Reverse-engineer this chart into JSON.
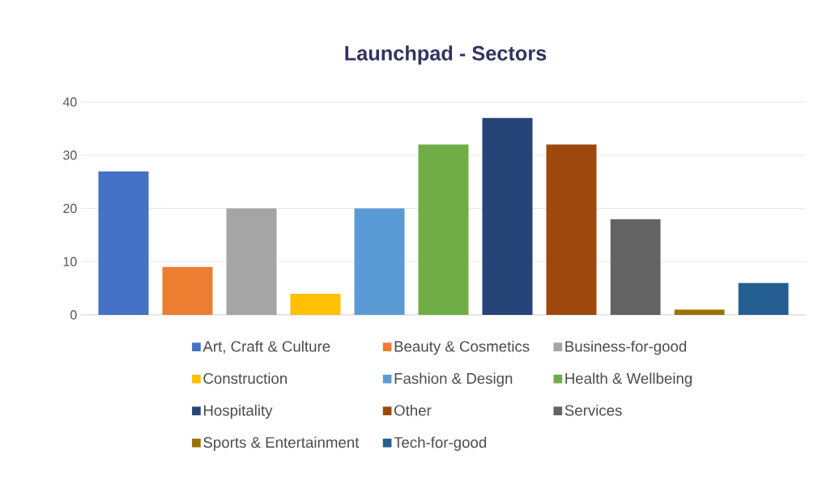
{
  "chart_data": {
    "type": "bar",
    "title": "Launchpad - Sectors",
    "categories": [
      null
    ],
    "series": [
      {
        "name": "Art, Craft & Culture",
        "color": "#4472c4",
        "values": [
          27
        ]
      },
      {
        "name": "Beauty & Cosmetics",
        "color": "#ed7d31",
        "values": [
          9
        ]
      },
      {
        "name": "Business-for-good",
        "color": "#a5a5a5",
        "values": [
          20
        ]
      },
      {
        "name": "Construction",
        "color": "#ffc000",
        "values": [
          4
        ]
      },
      {
        "name": "Fashion & Design",
        "color": "#5b9bd5",
        "values": [
          20
        ]
      },
      {
        "name": "Health & Wellbeing",
        "color": "#70ad47",
        "values": [
          32
        ]
      },
      {
        "name": "Hospitality",
        "color": "#264478",
        "values": [
          37
        ]
      },
      {
        "name": "Other",
        "color": "#9e480e",
        "values": [
          32
        ]
      },
      {
        "name": "Services",
        "color": "#636363",
        "values": [
          18
        ]
      },
      {
        "name": "Sports & Entertainment",
        "color": "#997300",
        "values": [
          1
        ]
      },
      {
        "name": "Tech-for-good",
        "color": "#255e91",
        "values": [
          6
        ]
      }
    ],
    "ylim": [
      0,
      40
    ],
    "yticks": [
      0,
      10,
      20,
      30,
      40
    ],
    "grid": "y",
    "legend": "bottom",
    "tick_labels": "y"
  }
}
